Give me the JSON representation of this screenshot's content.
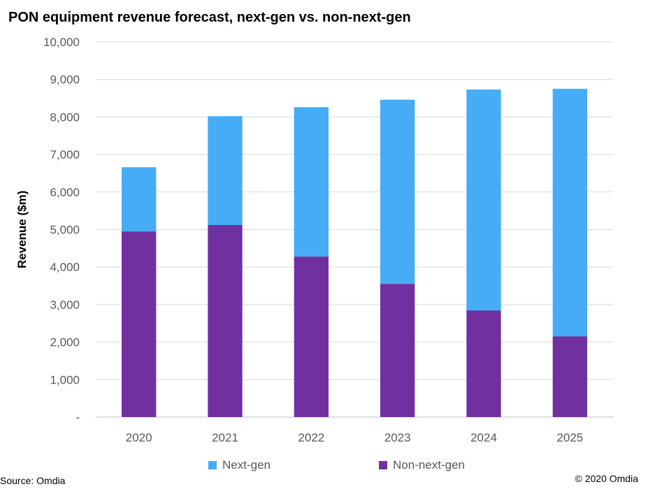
{
  "chart_data": {
    "type": "bar",
    "stacked": true,
    "title": "PON equipment revenue forecast, next-gen vs. non-next-gen",
    "xlabel": "",
    "ylabel": "Revenue ($m)",
    "ylim": [
      0,
      10000
    ],
    "yticks": [
      0,
      1000,
      2000,
      3000,
      4000,
      5000,
      6000,
      7000,
      8000,
      9000,
      10000
    ],
    "ytick_labels": [
      "-",
      "1,000",
      "2,000",
      "3,000",
      "4,000",
      "5,000",
      "6,000",
      "7,000",
      "8,000",
      "9,000",
      "10,000"
    ],
    "categories": [
      "2020",
      "2021",
      "2022",
      "2023",
      "2024",
      "2025"
    ],
    "series": [
      {
        "name": "Non-next-gen",
        "color": "#7030A0",
        "values": [
          4950,
          5120,
          4280,
          3550,
          2840,
          2150
        ]
      },
      {
        "name": "Next-gen",
        "color": "#45ACF5",
        "values": [
          1710,
          2900,
          3980,
          4910,
          5890,
          6600
        ]
      }
    ],
    "grid": true,
    "legend_position": "bottom",
    "legend": [
      {
        "label": "Next-gen",
        "color": "#45ACF5"
      },
      {
        "label": "Non-next-gen",
        "color": "#7030A0"
      }
    ]
  },
  "footer": {
    "source": "Source: Omdia",
    "copyright": "© 2020 Omdia"
  }
}
